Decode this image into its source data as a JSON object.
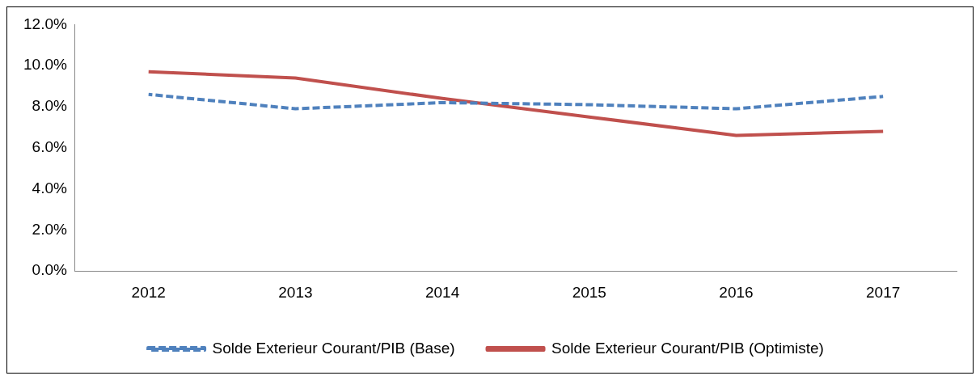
{
  "chart_data": {
    "type": "line",
    "categories": [
      "2012",
      "2013",
      "2014",
      "2015",
      "2016",
      "2017"
    ],
    "series": [
      {
        "name": "Solde Exterieur Courant/PIB (Base)",
        "color": "#4f81bd",
        "line_style": "dashed",
        "values": [
          8.6,
          7.9,
          8.2,
          8.1,
          7.9,
          8.5
        ]
      },
      {
        "name": "Solde Exterieur Courant/PIB (Optimiste)",
        "color": "#c0504d",
        "line_style": "solid",
        "values": [
          9.7,
          9.4,
          8.4,
          7.5,
          6.6,
          6.8
        ]
      }
    ],
    "ylim": [
      0,
      12
    ],
    "yticks": [
      {
        "value": 0,
        "label": "0.0%"
      },
      {
        "value": 2,
        "label": "2.0%"
      },
      {
        "value": 4,
        "label": "4.0%"
      },
      {
        "value": 6,
        "label": "6.0%"
      },
      {
        "value": 8,
        "label": "8.0%"
      },
      {
        "value": 10,
        "label": "10.0%"
      },
      {
        "value": 12,
        "label": "12.0%"
      }
    ],
    "grid": false,
    "legend": "bottom",
    "marker": "none"
  }
}
